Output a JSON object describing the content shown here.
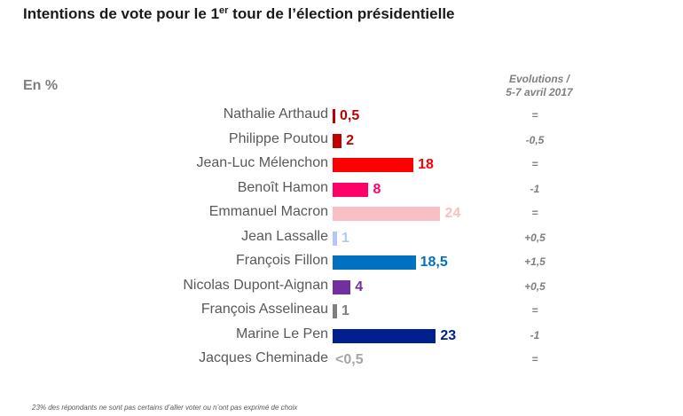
{
  "header": {
    "title_pre": "Intentions de vote pour le 1",
    "title_sup": "er",
    "title_post": " tour de l’élection présidentielle",
    "unit_label": "En %",
    "evolutions_label_line1": "Evolutions /",
    "evolutions_label_line2": "5-7 avril 2017"
  },
  "footnote": "23% des répondants ne sont pas certains d’aller voter ou n’ont pas exprimé de choix",
  "chart_data": {
    "type": "bar",
    "orientation": "horizontal",
    "title": "Intentions de vote pour le 1er tour de l’élection présidentielle",
    "unit": "En %",
    "categories": [
      "Nathalie Arthaud",
      "Philippe Poutou",
      "Jean-Luc Mélenchon",
      "Benoît Hamon",
      "Emmanuel Macron",
      "Jean Lassalle",
      "François Fillon",
      "Nicolas Dupont-Aignan",
      "François Asselineau",
      "Marine Le Pen",
      "Jacques Cheminade"
    ],
    "values": [
      0.5,
      2,
      18,
      8,
      24,
      1,
      18.5,
      4,
      1,
      23,
      0.25
    ],
    "value_labels": [
      "0,5",
      "2",
      "18",
      "8",
      "24",
      "1",
      "18,5",
      "4",
      "1",
      "23",
      "<0,5"
    ],
    "colors": [
      "#c00000",
      "#c00000",
      "#ff0000",
      "#ff0066",
      "#f8c0c4",
      "#b4c7f5",
      "#0070c0",
      "#7030a0",
      "#7f7f7f",
      "#002090",
      "#a6a6a6"
    ],
    "evolutions_title": "Evolutions / 5-7 avril 2017",
    "evolutions": [
      "=",
      "-0,5",
      "=",
      "-1",
      "=",
      "+0,5",
      "+1,5",
      "+0,5",
      "=",
      "-1",
      "="
    ],
    "xlim": [
      0,
      25
    ],
    "grid": false,
    "legend": "none"
  }
}
